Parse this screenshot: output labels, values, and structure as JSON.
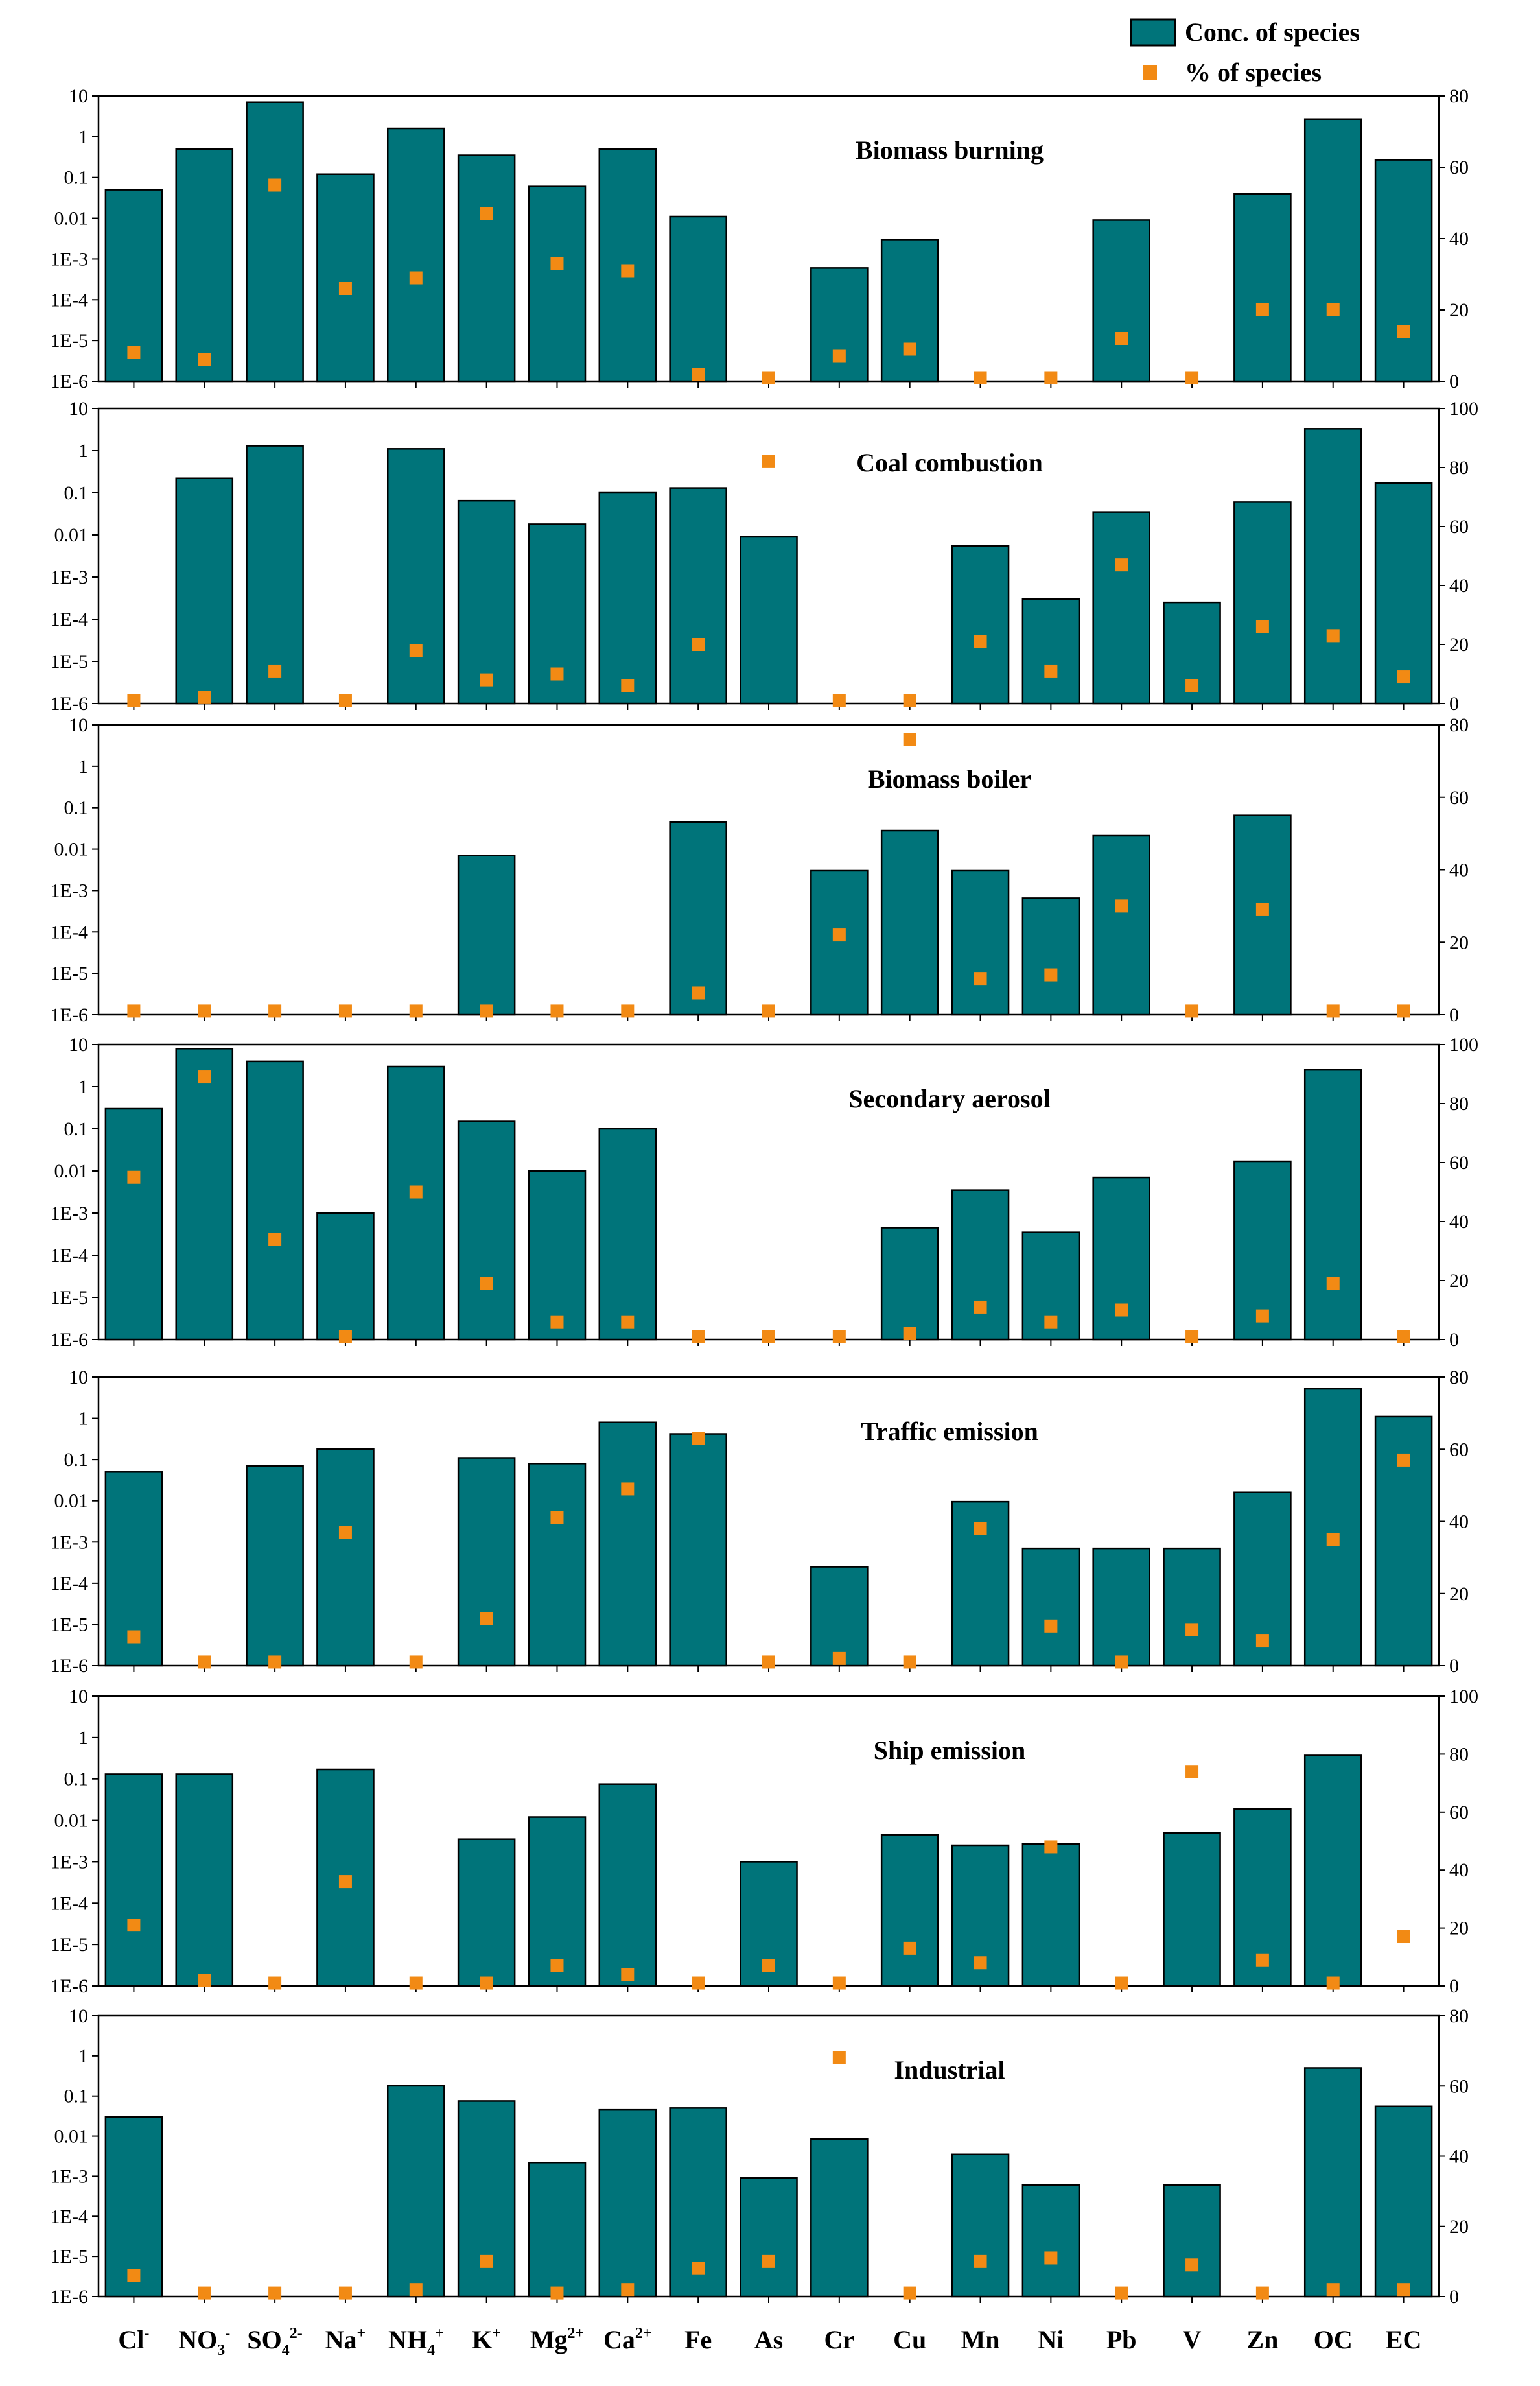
{
  "legend": {
    "bar_label": "Conc. of species",
    "marker_label": "% of species"
  },
  "colors": {
    "bar": "#00747A",
    "bar_edge": "#000000",
    "marker": "#F28A14"
  },
  "chart_data": {
    "type": "bar",
    "yscale_left": "log",
    "categories": [
      "Cl-",
      "NO3-",
      "SO4 2-",
      "Na+",
      "NH4+",
      "K+",
      "Mg2+",
      "Ca2+",
      "Fe",
      "As",
      "Cr",
      "Cu",
      "Mn",
      "Ni",
      "Pb",
      "V",
      "Zn",
      "OC",
      "EC"
    ],
    "category_labels": [
      {
        "base": "Cl",
        "sup": "-"
      },
      {
        "base": "NO",
        "sub": "3",
        "sup": "-"
      },
      {
        "base": "SO",
        "sub": "4",
        "sup": "2-"
      },
      {
        "base": "Na",
        "sup": "+"
      },
      {
        "base": "NH",
        "sub": "4",
        "sup": "+"
      },
      {
        "base": "K",
        "sup": "+"
      },
      {
        "base": "Mg",
        "sup": "2+"
      },
      {
        "base": "Ca",
        "sup": "2+"
      },
      {
        "base": "Fe"
      },
      {
        "base": "As"
      },
      {
        "base": "Cr"
      },
      {
        "base": "Cu"
      },
      {
        "base": "Mn"
      },
      {
        "base": "Ni"
      },
      {
        "base": "Pb"
      },
      {
        "base": "V"
      },
      {
        "base": "Zn"
      },
      {
        "base": "OC"
      },
      {
        "base": "EC"
      }
    ],
    "left_ticks": [
      "10",
      "1",
      "0.1",
      "0.01",
      "1E-3",
      "1E-4",
      "1E-5",
      "1E-6"
    ],
    "panels": [
      {
        "title": "Biomass burning",
        "right_ylim": [
          0,
          80
        ],
        "right_ticks": [
          "80",
          "60",
          "40",
          "20",
          "0"
        ],
        "conc": [
          0.05,
          0.5,
          7,
          0.12,
          1.6,
          0.35,
          0.06,
          0.5,
          0.011,
          null,
          0.0006,
          0.003,
          null,
          null,
          0.009,
          null,
          0.04,
          2.7,
          0.27
        ],
        "percent": [
          8,
          6,
          55,
          26,
          29,
          47,
          33,
          31,
          2,
          1,
          7,
          9,
          1,
          1,
          12,
          1,
          20,
          20,
          14
        ]
      },
      {
        "title": "Coal combustion",
        "right_ylim": [
          0,
          100
        ],
        "right_ticks": [
          "100",
          "80",
          "60",
          "40",
          "20",
          "0"
        ],
        "conc": [
          null,
          0.22,
          1.3,
          null,
          1.1,
          0.065,
          0.018,
          0.1,
          0.13,
          0.009,
          null,
          null,
          0.0055,
          0.0003,
          0.035,
          0.00025,
          0.06,
          3.3,
          0.17
        ],
        "percent": [
          1,
          2,
          11,
          1,
          18,
          8,
          10,
          6,
          20,
          82,
          1,
          1,
          21,
          11,
          47,
          6,
          26,
          23,
          9
        ]
      },
      {
        "title": "Biomass boiler",
        "right_ylim": [
          0,
          80
        ],
        "right_ticks": [
          "80",
          "60",
          "40",
          "20",
          "0"
        ],
        "conc": [
          null,
          null,
          null,
          null,
          null,
          0.007,
          null,
          null,
          0.045,
          null,
          0.003,
          0.028,
          0.003,
          0.00065,
          0.021,
          null,
          0.065,
          null,
          null
        ],
        "percent": [
          1,
          1,
          1,
          1,
          1,
          1,
          1,
          1,
          6,
          1,
          22,
          76,
          10,
          11,
          30,
          1,
          29,
          1,
          1
        ]
      },
      {
        "title": "Secondary aerosol",
        "right_ylim": [
          0,
          100
        ],
        "right_ticks": [
          "100",
          "80",
          "60",
          "40",
          "20",
          "0"
        ],
        "conc": [
          0.3,
          8,
          4,
          0.001,
          3,
          0.15,
          0.01,
          0.1,
          null,
          null,
          null,
          0.00045,
          0.0035,
          0.00035,
          0.007,
          null,
          0.017,
          2.5,
          null
        ],
        "percent": [
          55,
          89,
          34,
          1,
          50,
          19,
          6,
          6,
          1,
          1,
          1,
          2,
          11,
          6,
          10,
          1,
          8,
          19,
          1
        ]
      },
      {
        "title": "Traffic emission",
        "right_ylim": [
          0,
          80
        ],
        "right_ticks": [
          "80",
          "60",
          "40",
          "20",
          "0"
        ],
        "conc": [
          0.05,
          null,
          0.07,
          0.18,
          null,
          0.11,
          0.08,
          0.8,
          0.42,
          null,
          0.00025,
          null,
          0.0095,
          0.0007,
          0.0007,
          0.0007,
          0.016,
          5.2,
          1.1
        ],
        "percent": [
          8,
          1,
          1,
          37,
          1,
          13,
          41,
          49,
          63,
          1,
          2,
          1,
          38,
          11,
          1,
          10,
          7,
          35,
          57
        ]
      },
      {
        "title": "Ship emission",
        "right_ylim": [
          0,
          100
        ],
        "right_ticks": [
          "100",
          "80",
          "60",
          "40",
          "20",
          "0"
        ],
        "conc": [
          0.13,
          0.13,
          null,
          0.17,
          null,
          0.0035,
          0.012,
          0.075,
          null,
          0.001,
          null,
          0.0045,
          0.0025,
          0.0027,
          null,
          0.005,
          0.019,
          0.37,
          null
        ],
        "percent": [
          21,
          2,
          1,
          36,
          1,
          1,
          7,
          4,
          1,
          7,
          1,
          13,
          8,
          48,
          1,
          74,
          9,
          1,
          17
        ]
      },
      {
        "title": "Industrial",
        "right_ylim": [
          0,
          80
        ],
        "right_ticks": [
          "80",
          "60",
          "40",
          "20",
          "0"
        ],
        "conc": [
          0.03,
          null,
          null,
          null,
          0.18,
          0.075,
          0.0022,
          0.045,
          0.05,
          0.0009,
          0.0085,
          null,
          0.0035,
          0.0006,
          null,
          0.0006,
          null,
          0.5,
          0.055
        ],
        "percent": [
          6,
          1,
          1,
          1,
          2,
          10,
          1,
          2,
          8,
          10,
          68,
          1,
          10,
          11,
          1,
          9,
          1,
          2,
          2
        ]
      }
    ]
  }
}
